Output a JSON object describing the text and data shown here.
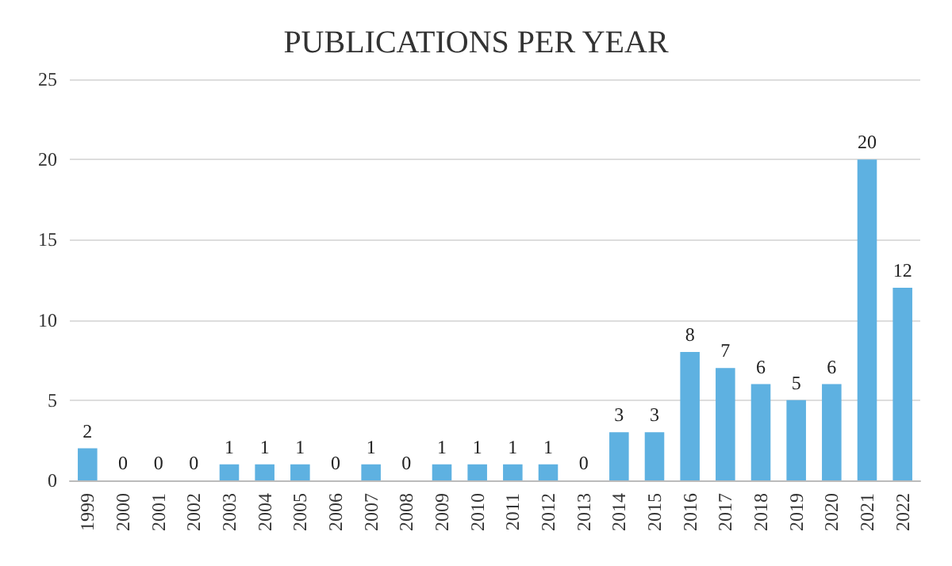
{
  "chart_data": {
    "type": "bar",
    "title": "PUBLICATIONS PER YEAR",
    "categories": [
      "1999",
      "2000",
      "2001",
      "2002",
      "2003",
      "2004",
      "2005",
      "2006",
      "2007",
      "2008",
      "2009",
      "2010",
      "2011",
      "2012",
      "2013",
      "2014",
      "2015",
      "2016",
      "2017",
      "2018",
      "2019",
      "2020",
      "2021",
      "2022"
    ],
    "values": [
      2,
      0,
      0,
      0,
      1,
      1,
      1,
      0,
      1,
      0,
      1,
      1,
      1,
      1,
      0,
      3,
      3,
      8,
      7,
      6,
      5,
      6,
      20,
      12
    ],
    "color": "#5eb1e1",
    "ylim": [
      0,
      25
    ],
    "yticks": [
      0,
      5,
      10,
      15,
      20,
      25
    ],
    "grid": "y",
    "data_labels": true
  }
}
